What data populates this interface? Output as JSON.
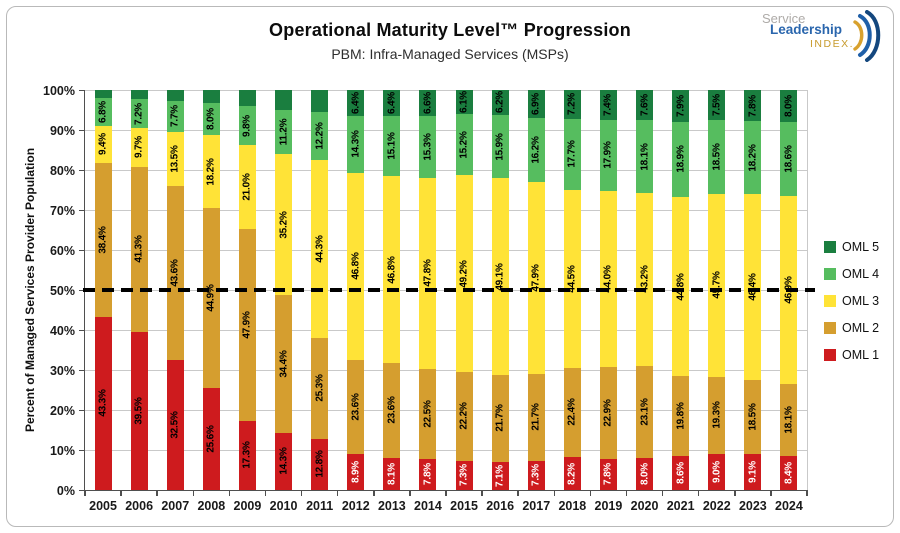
{
  "logo": {
    "line1": "Service",
    "line2": "Leadership",
    "line3": "INDEX."
  },
  "chart_data": {
    "type": "bar",
    "stacked": true,
    "title": "Operational Maturity Level™ Progression",
    "subtitle": "PBM: Infra-Managed Services (MSPs)",
    "ylabel": "Percent of Managed Services Provider Population",
    "ylim": [
      0,
      100
    ],
    "y_tick_labels": [
      "0%",
      "10%",
      "20%",
      "30%",
      "40%",
      "50%",
      "60%",
      "70%",
      "80%",
      "90%",
      "100%"
    ],
    "grid": "horizontal",
    "reference_line": {
      "y": 50,
      "style": "dashed",
      "color": "#000000"
    },
    "legend_position": "right",
    "legend_entries_top_to_bottom": [
      "OML 5",
      "OML 4",
      "OML 3",
      "OML 2",
      "OML 1"
    ],
    "categories": [
      "2005",
      "2006",
      "2007",
      "2008",
      "2009",
      "2010",
      "2011",
      "2012",
      "2013",
      "2014",
      "2015",
      "2016",
      "2017",
      "2018",
      "2019",
      "2020",
      "2021",
      "2022",
      "2023",
      "2024"
    ],
    "series_order": "bottom-to-top",
    "series": [
      {
        "name": "OML 1",
        "color": "#ce1b1e",
        "values": [
          43.3,
          39.5,
          32.5,
          25.6,
          17.3,
          14.3,
          12.8,
          8.9,
          8.1,
          7.8,
          7.3,
          7.1,
          7.3,
          8.2,
          7.8,
          8.0,
          8.6,
          9.0,
          9.1,
          8.4
        ],
        "labels": [
          "43.3%",
          "39.5%",
          "32.5%",
          "25.6%",
          "17.3%",
          "14.3%",
          "12.8%",
          "8.9%",
          "8.1%",
          "7.8%",
          "7.3%",
          "7.1%",
          "7.3%",
          "8.2%",
          "7.8%",
          "8.0%",
          "8.6%",
          "9.0%",
          "9.1%",
          "8.4%"
        ],
        "label_colors": [
          "#000000",
          "#000000",
          "#000000",
          "#000000",
          "#000000",
          "#000000",
          "#000000",
          "#ffffff",
          "#ffffff",
          "#ffffff",
          "#ffffff",
          "#ffffff",
          "#ffffff",
          "#ffffff",
          "#ffffff",
          "#ffffff",
          "#ffffff",
          "#ffffff",
          "#ffffff",
          "#ffffff"
        ]
      },
      {
        "name": "OML 2",
        "color": "#d59e2f",
        "values": [
          38.4,
          41.3,
          43.6,
          44.9,
          47.9,
          34.4,
          25.3,
          23.6,
          23.6,
          22.5,
          22.2,
          21.7,
          21.7,
          22.4,
          22.9,
          23.1,
          19.8,
          19.3,
          18.5,
          18.1
        ],
        "labels": [
          "38.4%",
          "41.3%",
          "43.6%",
          "44.9%",
          "47.9%",
          "34.4%",
          "25.3%",
          "23.6%",
          "23.6%",
          "22.5%",
          "22.2%",
          "21.7%",
          "21.7%",
          "22.4%",
          "22.9%",
          "23.1%",
          "19.8%",
          "19.3%",
          "18.5%",
          "18.1%"
        ]
      },
      {
        "name": "OML 3",
        "color": "#ffe337",
        "values": [
          9.4,
          9.7,
          13.5,
          18.2,
          21.0,
          35.2,
          44.3,
          46.8,
          46.8,
          47.8,
          49.2,
          49.1,
          47.9,
          44.5,
          44.0,
          43.2,
          44.8,
          45.7,
          46.4,
          46.9
        ],
        "labels": [
          "9.4%",
          "9.7%",
          "13.5%",
          "18.2%",
          "21.0%",
          "35.2%",
          "44.3%",
          "46.8%",
          "46.8%",
          "47.8%",
          "49.2%",
          "49.1%",
          "47.9%",
          "44.5%",
          "44.0%",
          "43.2%",
          "44.8%",
          "45.7%",
          "46.4%",
          "46.9%"
        ]
      },
      {
        "name": "OML 4",
        "color": "#56bd5f",
        "values": [
          6.8,
          7.2,
          7.7,
          8.0,
          9.8,
          11.2,
          12.2,
          14.3,
          15.1,
          15.3,
          15.2,
          15.9,
          16.2,
          17.7,
          17.9,
          18.1,
          18.9,
          18.5,
          18.2,
          18.6
        ],
        "labels": [
          "6.8%",
          "7.2%",
          "7.7%",
          "8.0%",
          "9.8%",
          "11.2%",
          "12.2%",
          "14.3%",
          "15.1%",
          "15.3%",
          "15.2%",
          "15.9%",
          "16.2%",
          "17.7%",
          "17.9%",
          "18.1%",
          "18.9%",
          "18.5%",
          "18.2%",
          "18.6%"
        ]
      },
      {
        "name": "OML 5",
        "color": "#1a7e3f",
        "values": [
          2.1,
          2.3,
          2.7,
          3.3,
          4.0,
          4.9,
          5.4,
          6.4,
          6.4,
          6.6,
          6.1,
          6.2,
          6.9,
          7.2,
          7.4,
          7.6,
          7.9,
          7.5,
          7.8,
          8.0
        ],
        "labels": [
          "",
          "",
          "",
          "",
          "",
          "",
          "",
          "6.4%",
          "6.4%",
          "6.6%",
          "6.1%",
          "6.2%",
          "6.9%",
          "7.2%",
          "7.4%",
          "7.6%",
          "7.9%",
          "7.5%",
          "7.8%",
          "8.0%"
        ]
      }
    ]
  }
}
